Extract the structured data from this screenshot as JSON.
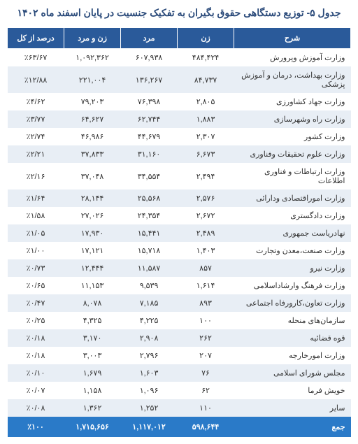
{
  "title": "جدول ۵- توزیع دستگاهی حقوق بگیران به تفکیک جنسیت در پایان اسفند ماه ۱۴۰۲",
  "table": {
    "columns": [
      "شرح",
      "زن",
      "مرد",
      "زن و مرد",
      "درصد از کل"
    ],
    "rows": [
      [
        "وزارت آموزش وپرورش",
        "۴۸۴,۴۲۴",
        "۶۰۷,۹۳۸",
        "۱,۰۹۲,۳۶۲",
        "٪۶۳/۶۷"
      ],
      [
        "وزارت بهداشت، درمان و آموزش پزشکی",
        "۸۴,۷۳۷",
        "۱۳۶,۲۶۷",
        "۲۲۱,۰۰۴",
        "٪۱۲/۸۸"
      ],
      [
        "وزارت جهاد کشاورزی",
        "۲,۸۰۵",
        "۷۶,۳۹۸",
        "۷۹,۲۰۳",
        "٪۴/۶۲"
      ],
      [
        "وزارت راه وشهرسازی",
        "۱,۸۸۳",
        "۶۲,۷۴۴",
        "۶۴,۶۲۷",
        "٪۳/۷۷"
      ],
      [
        "وزارت کشور",
        "۲,۳۰۷",
        "۴۴,۶۷۹",
        "۴۶,۹۸۶",
        "٪۲/۷۴"
      ],
      [
        "وزارت علوم تحقیقات وفناوری",
        "۶,۶۷۳",
        "۳۱,۱۶۰",
        "۳۷,۸۳۳",
        "٪۲/۲۱"
      ],
      [
        "وزارت ارتباطات و فناوری اطلاعات",
        "۲,۴۹۴",
        "۳۴,۵۵۴",
        "۳۷,۰۴۸",
        "٪۲/۱۶"
      ],
      [
        "وزارت اموراقتصادی ودارائی",
        "۲,۵۷۶",
        "۲۵,۵۶۸",
        "۲۸,۱۴۴",
        "٪۱/۶۴"
      ],
      [
        "وزارت دادگستری",
        "۲,۶۷۲",
        "۲۴,۳۵۴",
        "۲۷,۰۲۶",
        "٪۱/۵۸"
      ],
      [
        "نهادریاست جمهوری",
        "۲,۴۸۹",
        "۱۵,۴۴۱",
        "۱۷,۹۳۰",
        "٪۱/۰۵"
      ],
      [
        "وزارت صنعت،معدن وتجارت",
        "۱,۴۰۳",
        "۱۵,۷۱۸",
        "۱۷,۱۲۱",
        "٪۱/۰۰"
      ],
      [
        "وزارت نیرو",
        "۸۵۷",
        "۱۱,۵۸۷",
        "۱۲,۴۴۴",
        "٪۰/۷۳"
      ],
      [
        "وزارت فرهنگ وارشاداسلامی",
        "۱,۶۱۴",
        "۹,۵۳۹",
        "۱۱,۱۵۳",
        "٪۰/۶۵"
      ],
      [
        "وزارت تعاون،کارورفاه اجتماعی",
        "۸۹۳",
        "۷,۱۸۵",
        "۸,۰۷۸",
        "٪۰/۴۷"
      ],
      [
        "سازمان‌های منحله",
        "۱۰۰",
        "۴,۲۲۵",
        "۴,۳۲۵",
        "٪۰/۲۵"
      ],
      [
        "قوه قضائیه",
        "۲۶۲",
        "۲,۹۰۸",
        "۳,۱۷۰",
        "٪۰/۱۸"
      ],
      [
        "وزارت امورخارجه",
        "۲۰۷",
        "۲,۷۹۶",
        "۳,۰۰۳",
        "٪۰/۱۸"
      ],
      [
        "مجلس شورای اسلامی",
        "۷۶",
        "۱,۶۰۳",
        "۱,۶۷۹",
        "٪۰/۱۰"
      ],
      [
        "خویش فرما",
        "۶۲",
        "۱,۰۹۶",
        "۱,۱۵۸",
        "٪۰/۰۷"
      ],
      [
        "سایر",
        "۱۱۰",
        "۱,۲۵۲",
        "۱,۳۶۲",
        "٪۰/۰۸"
      ]
    ],
    "footer": [
      "جمع",
      "۵۹۸,۶۴۴",
      "۱,۱۱۷,۰۱۲",
      "۱,۷۱۵,۶۵۶",
      "٪۱۰۰"
    ]
  },
  "style": {
    "header_bg": "#2a5a9a",
    "header_fg": "#ffffff",
    "row_odd_bg": "#ffffff",
    "row_even_bg": "#e8eef5",
    "footer_bg": "#2a7ac8",
    "footer_fg": "#ffffff",
    "title_color": "#2a4a7a",
    "font_size_title": 14,
    "font_size_body": 11
  }
}
